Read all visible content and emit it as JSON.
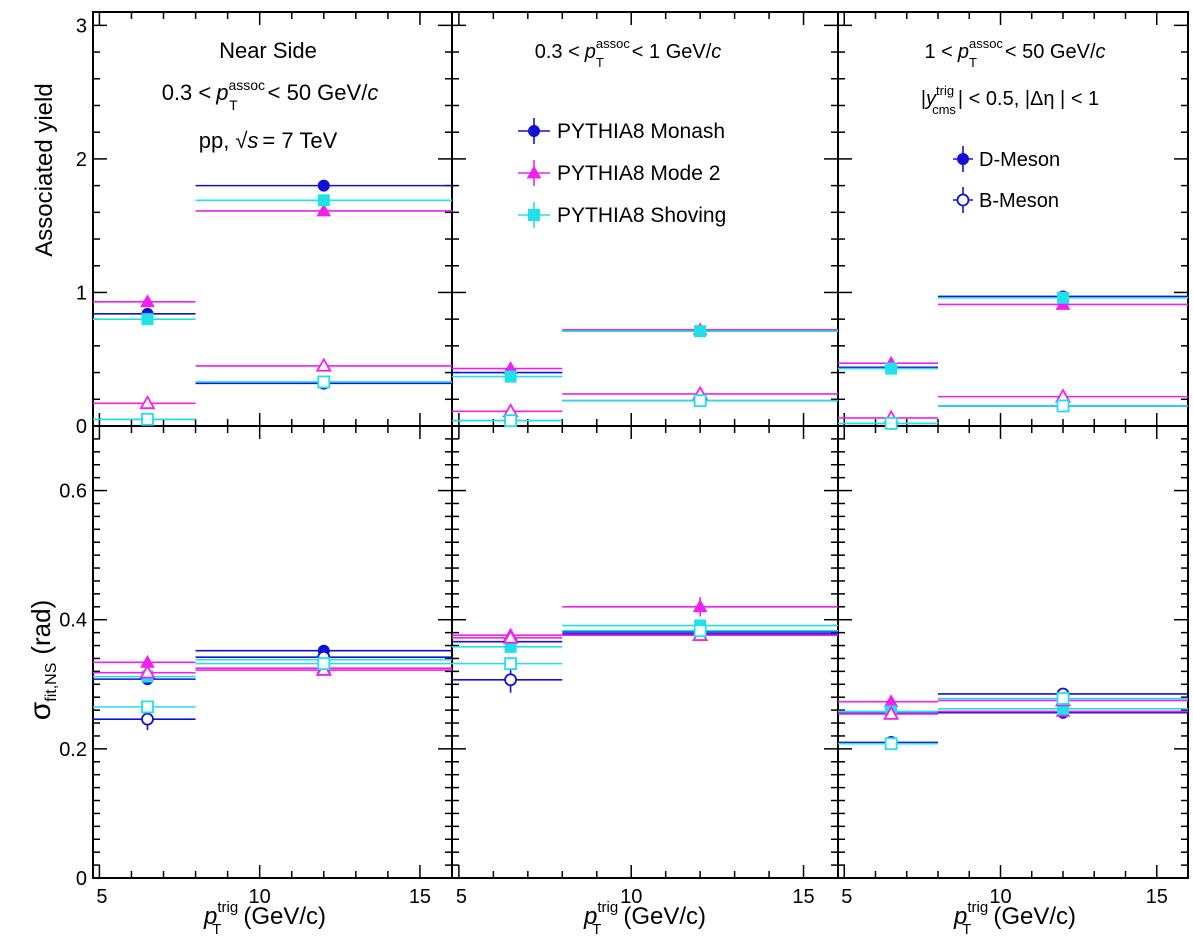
{
  "colors": {
    "pythia8_monash": "#1010d8",
    "pythia8_mode2": "#f020f0",
    "pythia8_shoving": "#20e0e8",
    "frame": "#000000"
  },
  "labels": {
    "ylabel_top": "Associated yield",
    "ylabel_bottom_sigma": "σ",
    "ylabel_bottom_sub": "fit,NS",
    "ylabel_bottom_unit": "(rad)",
    "xlabel_p": "p",
    "xlabel_sup": "trig",
    "xlabel_sub": "T",
    "xlabel_unit": "(GeV/c)"
  },
  "annotations": {
    "panel1": {
      "line1": "Near Side",
      "line2_pre": "0.3 <",
      "line2_p": "p",
      "line2_sup": "assoc",
      "line2_sub": "T",
      "line2_post": "< 50 GeV/",
      "line2_c": "c",
      "line3_pre": "pp,",
      "line3_root": "√s",
      "line3_post": "= 7 TeV"
    },
    "panel2": {
      "line1_pre": "0.3 <",
      "line1_p": "p",
      "line1_sup": "assoc",
      "line1_sub": "T",
      "line1_post": "< 1 GeV/",
      "line1_c": "c"
    },
    "panel3": {
      "line1_pre": "1 <",
      "line1_p": "p",
      "line1_sup": "assoc",
      "line1_sub": "T",
      "line1_post": "< 50 GeV/",
      "line1_c": "c",
      "line2_pre": "|",
      "line2_y": "y",
      "line2_sup": "trig",
      "line2_sub": "cms",
      "line2_post": "| < 0.5, |Δη | < 1"
    }
  },
  "legend_models": [
    "PYTHIA8 Monash",
    "PYTHIA8 Mode 2",
    "PYTHIA8 Shoving"
  ],
  "legend_mesons": [
    "D-Meson",
    "B-Meson"
  ],
  "chart_data": [
    {
      "type": "scatter",
      "panel": "top-left",
      "xlim": [
        4.8,
        16.0
      ],
      "ylim": [
        0,
        3.1
      ],
      "x_ticks": [
        "5",
        "10",
        "15"
      ],
      "y_ticks": [
        "0",
        "1",
        "2",
        "3"
      ],
      "bins": [
        [
          4.8,
          8.0
        ],
        [
          8.0,
          16.0
        ]
      ],
      "x": [
        6.5,
        12.0
      ],
      "series": [
        {
          "name": "PYTHIA8 Monash",
          "meson": "D-Meson",
          "values": [
            0.84,
            1.8
          ],
          "errors": [
            0.02,
            0.03
          ]
        },
        {
          "name": "PYTHIA8 Mode 2",
          "meson": "D-Meson",
          "values": [
            0.93,
            1.61
          ],
          "errors": [
            0.02,
            0.03
          ]
        },
        {
          "name": "PYTHIA8 Shoving",
          "meson": "D-Meson",
          "values": [
            0.8,
            1.69
          ],
          "errors": [
            0.02,
            0.03
          ]
        },
        {
          "name": "PYTHIA8 Monash",
          "meson": "B-Meson",
          "values": [
            0.05,
            0.32
          ],
          "errors": [
            0.01,
            0.01
          ]
        },
        {
          "name": "PYTHIA8 Mode 2",
          "meson": "B-Meson",
          "values": [
            0.17,
            0.45
          ],
          "errors": [
            0.01,
            0.01
          ]
        },
        {
          "name": "PYTHIA8 Shoving",
          "meson": "B-Meson",
          "values": [
            0.05,
            0.33
          ],
          "errors": [
            0.01,
            0.01
          ]
        }
      ]
    },
    {
      "type": "scatter",
      "panel": "top-middle",
      "xlim": [
        4.8,
        16.0
      ],
      "ylim": [
        0,
        3.1
      ],
      "x_ticks": [
        "5",
        "10",
        "15"
      ],
      "y_ticks": [],
      "bins": [
        [
          4.8,
          8.0
        ],
        [
          8.0,
          16.0
        ]
      ],
      "x": [
        6.5,
        12.0
      ],
      "series": [
        {
          "name": "PYTHIA8 Monash",
          "meson": "D-Meson",
          "values": [
            0.4,
            0.71
          ],
          "errors": [
            0.01,
            0.01
          ]
        },
        {
          "name": "PYTHIA8 Mode 2",
          "meson": "D-Meson",
          "values": [
            0.43,
            0.72
          ],
          "errors": [
            0.01,
            0.01
          ]
        },
        {
          "name": "PYTHIA8 Shoving",
          "meson": "D-Meson",
          "values": [
            0.37,
            0.71
          ],
          "errors": [
            0.01,
            0.01
          ]
        },
        {
          "name": "PYTHIA8 Monash",
          "meson": "B-Meson",
          "values": [
            0.04,
            0.19
          ],
          "errors": [
            0.01,
            0.01
          ]
        },
        {
          "name": "PYTHIA8 Mode 2",
          "meson": "B-Meson",
          "values": [
            0.11,
            0.24
          ],
          "errors": [
            0.01,
            0.01
          ]
        },
        {
          "name": "PYTHIA8 Shoving",
          "meson": "B-Meson",
          "values": [
            0.04,
            0.19
          ],
          "errors": [
            0.01,
            0.01
          ]
        }
      ]
    },
    {
      "type": "scatter",
      "panel": "top-right",
      "xlim": [
        4.8,
        16.0
      ],
      "ylim": [
        0,
        3.1
      ],
      "x_ticks": [
        "5",
        "10",
        "15"
      ],
      "y_ticks": [],
      "bins": [
        [
          4.8,
          8.0
        ],
        [
          8.0,
          16.0
        ]
      ],
      "x": [
        6.5,
        12.0
      ],
      "series": [
        {
          "name": "PYTHIA8 Monash",
          "meson": "D-Meson",
          "values": [
            0.44,
            0.97
          ],
          "errors": [
            0.01,
            0.02
          ]
        },
        {
          "name": "PYTHIA8 Mode 2",
          "meson": "D-Meson",
          "values": [
            0.47,
            0.91
          ],
          "errors": [
            0.01,
            0.02
          ]
        },
        {
          "name": "PYTHIA8 Shoving",
          "meson": "D-Meson",
          "values": [
            0.43,
            0.96
          ],
          "errors": [
            0.01,
            0.02
          ]
        },
        {
          "name": "PYTHIA8 Monash",
          "meson": "B-Meson",
          "values": [
            0.02,
            0.15
          ],
          "errors": [
            0.01,
            0.01
          ]
        },
        {
          "name": "PYTHIA8 Mode 2",
          "meson": "B-Meson",
          "values": [
            0.06,
            0.22
          ],
          "errors": [
            0.01,
            0.01
          ]
        },
        {
          "name": "PYTHIA8 Shoving",
          "meson": "B-Meson",
          "values": [
            0.02,
            0.15
          ],
          "errors": [
            0.01,
            0.01
          ]
        }
      ]
    },
    {
      "type": "scatter",
      "panel": "bottom-left",
      "xlim": [
        4.8,
        16.0
      ],
      "ylim": [
        0,
        0.7
      ],
      "x_ticks": [
        "5",
        "10",
        "15"
      ],
      "y_ticks": [
        "0",
        "0.2",
        "0.4",
        "0.6"
      ],
      "bins": [
        [
          4.8,
          8.0
        ],
        [
          8.0,
          16.0
        ]
      ],
      "x": [
        6.5,
        12.0
      ],
      "series": [
        {
          "name": "PYTHIA8 Monash",
          "meson": "D-Meson",
          "values": [
            0.308,
            0.352
          ],
          "errors": [
            0.006,
            0.008
          ]
        },
        {
          "name": "PYTHIA8 Mode 2",
          "meson": "D-Meson",
          "values": [
            0.334,
            0.325
          ],
          "errors": [
            0.006,
            0.008
          ]
        },
        {
          "name": "PYTHIA8 Shoving",
          "meson": "D-Meson",
          "values": [
            0.312,
            0.338
          ],
          "errors": [
            0.006,
            0.008
          ]
        },
        {
          "name": "PYTHIA8 Monash",
          "meson": "B-Meson",
          "values": [
            0.246,
            0.342
          ],
          "errors": [
            0.017,
            0.006
          ]
        },
        {
          "name": "PYTHIA8 Mode 2",
          "meson": "B-Meson",
          "values": [
            0.318,
            0.322
          ],
          "errors": [
            0.006,
            0.006
          ]
        },
        {
          "name": "PYTHIA8 Shoving",
          "meson": "B-Meson",
          "values": [
            0.265,
            0.332
          ],
          "errors": [
            0.008,
            0.006
          ]
        }
      ]
    },
    {
      "type": "scatter",
      "panel": "bottom-middle",
      "xlim": [
        4.8,
        16.0
      ],
      "ylim": [
        0,
        0.7
      ],
      "x_ticks": [
        "5",
        "10",
        "15"
      ],
      "y_ticks": [],
      "bins": [
        [
          4.8,
          8.0
        ],
        [
          8.0,
          16.0
        ]
      ],
      "x": [
        6.5,
        12.0
      ],
      "series": [
        {
          "name": "PYTHIA8 Monash",
          "meson": "D-Meson",
          "values": [
            0.366,
            0.381
          ],
          "errors": [
            0.008,
            0.008
          ]
        },
        {
          "name": "PYTHIA8 Mode 2",
          "meson": "D-Meson",
          "values": [
            0.376,
            0.42
          ],
          "errors": [
            0.01,
            0.015
          ]
        },
        {
          "name": "PYTHIA8 Shoving",
          "meson": "D-Meson",
          "values": [
            0.358,
            0.391
          ],
          "errors": [
            0.008,
            0.008
          ]
        },
        {
          "name": "PYTHIA8 Monash",
          "meson": "B-Meson",
          "values": [
            0.307,
            0.378
          ],
          "errors": [
            0.02,
            0.006
          ]
        },
        {
          "name": "PYTHIA8 Mode 2",
          "meson": "B-Meson",
          "values": [
            0.372,
            0.376
          ],
          "errors": [
            0.006,
            0.006
          ]
        },
        {
          "name": "PYTHIA8 Shoving",
          "meson": "B-Meson",
          "values": [
            0.332,
            0.383
          ],
          "errors": [
            0.01,
            0.006
          ]
        }
      ]
    },
    {
      "type": "scatter",
      "panel": "bottom-right",
      "xlim": [
        4.8,
        16.0
      ],
      "ylim": [
        0,
        0.7
      ],
      "x_ticks": [
        "5",
        "10",
        "15"
      ],
      "y_ticks": [],
      "bins": [
        [
          4.8,
          8.0
        ],
        [
          8.0,
          16.0
        ]
      ],
      "x": [
        6.5,
        12.0
      ],
      "series": [
        {
          "name": "PYTHIA8 Monash",
          "meson": "D-Meson",
          "values": [
            0.255,
            0.256
          ],
          "errors": [
            0.006,
            0.006
          ]
        },
        {
          "name": "PYTHIA8 Mode 2",
          "meson": "D-Meson",
          "values": [
            0.273,
            0.258
          ],
          "errors": [
            0.006,
            0.006
          ]
        },
        {
          "name": "PYTHIA8 Shoving",
          "meson": "D-Meson",
          "values": [
            0.258,
            0.262
          ],
          "errors": [
            0.006,
            0.006
          ]
        },
        {
          "name": "PYTHIA8 Monash",
          "meson": "B-Meson",
          "values": [
            0.21,
            0.285
          ],
          "errors": [
            0.01,
            0.006
          ]
        },
        {
          "name": "PYTHIA8 Mode 2",
          "meson": "B-Meson",
          "values": [
            0.254,
            0.275
          ],
          "errors": [
            0.006,
            0.006
          ]
        },
        {
          "name": "PYTHIA8 Shoving",
          "meson": "B-Meson",
          "values": [
            0.208,
            0.278
          ],
          "errors": [
            0.008,
            0.006
          ]
        }
      ]
    }
  ]
}
